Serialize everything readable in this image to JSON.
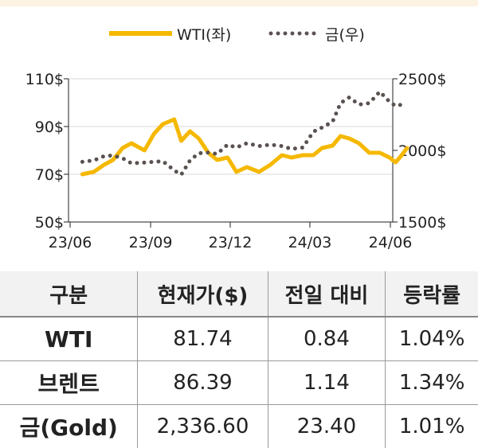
{
  "chart_data": {
    "type": "line",
    "x_ticks": [
      "23/06",
      "23/09",
      "23/12",
      "24/03",
      "24/06"
    ],
    "y_left": {
      "ticks": [
        "110$",
        "90$",
        "70$",
        "50$"
      ],
      "range": [
        50,
        110
      ]
    },
    "y_right": {
      "ticks": [
        "2500$",
        "2000$",
        "1500$"
      ],
      "range": [
        1500,
        2500
      ]
    },
    "series": [
      {
        "name": "WTI(좌)",
        "axis": "left",
        "style": "solid",
        "color": "#f5b800",
        "x": [
          "2023-06-15",
          "2023-06-28",
          "2023-07-10",
          "2023-07-20",
          "2023-07-31",
          "2023-08-10",
          "2023-08-25",
          "2023-09-05",
          "2023-09-15",
          "2023-09-28",
          "2023-10-06",
          "2023-10-16",
          "2023-10-26",
          "2023-11-06",
          "2023-11-16",
          "2023-11-28",
          "2023-12-08",
          "2023-12-20",
          "2024-01-03",
          "2024-01-16",
          "2024-01-29",
          "2024-02-09",
          "2024-02-22",
          "2024-03-05",
          "2024-03-15",
          "2024-03-27",
          "2024-04-05",
          "2024-04-15",
          "2024-04-26",
          "2024-05-08",
          "2024-05-20",
          "2024-05-31",
          "2024-06-07",
          "2024-06-14",
          "2024-06-20"
        ],
        "values": [
          70,
          71,
          74,
          76,
          81,
          83,
          80,
          87,
          91,
          93,
          84,
          88,
          85,
          79,
          76,
          77,
          71,
          73,
          71,
          74,
          78,
          77,
          78,
          78,
          81,
          82,
          86,
          85,
          83,
          79,
          79,
          77,
          75,
          78,
          81
        ]
      },
      {
        "name": "금(우)",
        "axis": "right",
        "style": "dotted",
        "color": "#5a5250",
        "x": [
          "2023-06-15",
          "2023-06-28",
          "2023-07-10",
          "2023-07-20",
          "2023-07-31",
          "2023-08-10",
          "2023-08-25",
          "2023-09-05",
          "2023-09-15",
          "2023-09-28",
          "2023-10-06",
          "2023-10-16",
          "2023-10-26",
          "2023-11-06",
          "2023-11-16",
          "2023-11-28",
          "2023-12-08",
          "2023-12-20",
          "2024-01-03",
          "2024-01-16",
          "2024-01-29",
          "2024-02-09",
          "2024-02-22",
          "2024-03-05",
          "2024-03-15",
          "2024-03-27",
          "2024-04-05",
          "2024-04-15",
          "2024-04-26",
          "2024-05-08",
          "2024-05-20",
          "2024-05-31",
          "2024-06-07",
          "2024-06-14",
          "2024-06-20"
        ],
        "values": [
          1920,
          1930,
          1960,
          1965,
          1945,
          1910,
          1915,
          1920,
          1925,
          1860,
          1830,
          1930,
          1980,
          1985,
          1975,
          2040,
          2020,
          2050,
          2030,
          2040,
          2030,
          2010,
          2020,
          2130,
          2160,
          2200,
          2330,
          2370,
          2320,
          2330,
          2410,
          2340,
          2310,
          2320,
          2330
        ]
      }
    ]
  },
  "table": {
    "headers": [
      "구분",
      "현재가($)",
      "전일 대비",
      "등락률"
    ],
    "rows": [
      [
        "WTI",
        "81.74",
        "0.84",
        "1.04%"
      ],
      [
        "브렌트",
        "86.39",
        "1.14",
        "1.34%"
      ],
      [
        "금(Gold)",
        "2,336.60",
        "23.40",
        "1.01%"
      ]
    ]
  }
}
